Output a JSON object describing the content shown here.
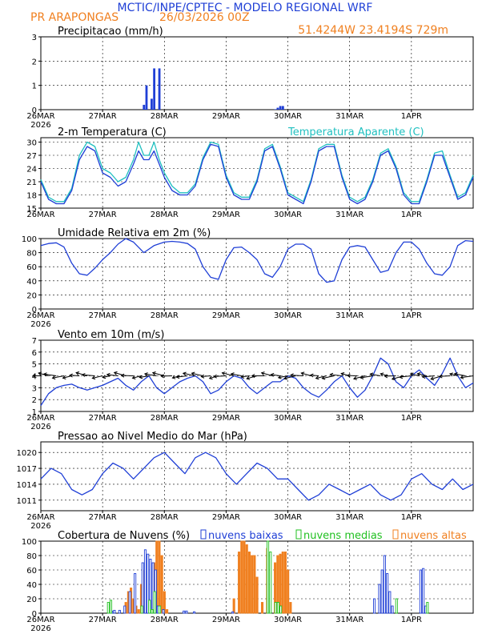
{
  "header": {
    "title": "MCTIC/INPE/CPTEC - MODELO REGIONAL WRF",
    "location": "PR ARAPONGAS",
    "run": "26/03/2026 00Z",
    "coords": "51.4244W 23.4194S 729m"
  },
  "colors": {
    "blue": "#1f3fd6",
    "cyan": "#20c0c0",
    "orange": "#f08020",
    "green": "#20c020"
  },
  "chart_data": [
    {
      "type": "bar",
      "title": "Precipitacao (mm/h)",
      "x_label_days": [
        "26MAR",
        "27MAR",
        "28MAR",
        "29MAR",
        "30MAR",
        "31MAR",
        "1APR"
      ],
      "year_label": "2026",
      "ylim": [
        0,
        3
      ],
      "yticks": [
        0,
        1,
        2,
        3
      ],
      "hours": [
        40,
        41,
        43,
        44,
        46,
        91,
        92,
        93,
        94
      ],
      "values": [
        0.2,
        1.0,
        0.45,
        1.7,
        1.7,
        0.02,
        0.08,
        0.15,
        0.15
      ]
    },
    {
      "type": "line",
      "title": "2-m Temperatura (C)",
      "legend_extra": "Temperatura Aparente (C)",
      "x_label_days": [
        "26MAR",
        "27MAR",
        "28MAR",
        "29MAR",
        "30MAR",
        "31MAR",
        "1APR"
      ],
      "year_label": "",
      "ylim": [
        15,
        31
      ],
      "yticks": [
        15,
        18,
        21,
        24,
        27,
        30
      ],
      "series": [
        {
          "name": "2-m Temperatura (C)",
          "hours": [
            0,
            3,
            6,
            9,
            12,
            15,
            18,
            21,
            24,
            27,
            30,
            33,
            36,
            38,
            40,
            42,
            44,
            46,
            48,
            51,
            54,
            57,
            60,
            63,
            66,
            69,
            72,
            75,
            78,
            81,
            84,
            87,
            90,
            93,
            96,
            99,
            102,
            105,
            108,
            111,
            114,
            117,
            120,
            123,
            126,
            129,
            132,
            135,
            138,
            141,
            144,
            147,
            150,
            153,
            156,
            159,
            162,
            165,
            168
          ],
          "values": [
            21,
            17,
            16,
            16,
            19,
            26,
            29,
            28,
            23,
            22,
            20,
            21,
            25,
            28,
            26,
            26,
            28,
            25,
            22,
            19,
            18,
            18,
            20,
            26,
            29.5,
            29,
            22,
            18,
            17,
            17,
            21,
            28,
            29,
            24,
            18,
            17,
            16,
            21,
            28,
            29,
            29,
            22,
            17,
            16,
            17,
            21,
            27,
            28,
            24,
            18,
            16,
            16,
            21,
            27,
            27,
            22,
            17,
            18,
            22
          ]
        },
        {
          "name": "Temperatura Aparente (C)",
          "hours": [
            0,
            3,
            6,
            9,
            12,
            15,
            18,
            21,
            24,
            27,
            30,
            33,
            36,
            38,
            40,
            42,
            44,
            46,
            48,
            51,
            54,
            57,
            60,
            63,
            66,
            69,
            72,
            75,
            78,
            81,
            84,
            87,
            90,
            93,
            96,
            99,
            102,
            105,
            108,
            111,
            114,
            117,
            120,
            123,
            126,
            129,
            132,
            135,
            138,
            141,
            144,
            147,
            150,
            153,
            156,
            159,
            162,
            165,
            168
          ],
          "values": [
            21.5,
            17.5,
            16.5,
            16.5,
            19.5,
            27,
            30,
            29,
            24,
            23,
            21,
            22,
            26,
            30,
            27,
            27,
            30,
            26,
            23,
            20,
            18.5,
            18.5,
            20.5,
            26.5,
            30,
            29.5,
            22.5,
            18.5,
            17.5,
            17.5,
            21.5,
            28.5,
            29.5,
            24.5,
            18.5,
            17.5,
            16.5,
            21.5,
            28.5,
            29.5,
            29.5,
            22.5,
            17.5,
            16.5,
            17.5,
            21.5,
            27.5,
            28.5,
            24.5,
            18.5,
            16.5,
            16.5,
            21.5,
            27.5,
            28,
            22.5,
            17.5,
            18.5,
            22.5
          ]
        }
      ]
    },
    {
      "type": "line",
      "title": "Umidade Relativa em 2m (%)",
      "x_label_days": [
        "26MAR",
        "27MAR",
        "28MAR",
        "29MAR",
        "30MAR",
        "31MAR",
        "1APR"
      ],
      "year_label": "2026",
      "ylim": [
        0,
        100
      ],
      "yticks": [
        0,
        20,
        40,
        60,
        80,
        100
      ],
      "series": [
        {
          "name": "Umidade Relativa (%)",
          "hours": [
            0,
            3,
            6,
            9,
            12,
            15,
            18,
            21,
            24,
            27,
            30,
            33,
            36,
            40,
            44,
            48,
            51,
            54,
            57,
            60,
            63,
            66,
            69,
            72,
            75,
            78,
            81,
            84,
            87,
            90,
            93,
            96,
            99,
            102,
            105,
            108,
            111,
            114,
            117,
            120,
            123,
            126,
            129,
            132,
            135,
            138,
            141,
            144,
            147,
            150,
            153,
            156,
            159,
            162,
            165,
            168
          ],
          "values": [
            90,
            93,
            94,
            88,
            65,
            50,
            48,
            58,
            70,
            80,
            92,
            100,
            95,
            80,
            90,
            95,
            96,
            95,
            93,
            85,
            60,
            45,
            42,
            70,
            87,
            88,
            80,
            70,
            50,
            45,
            60,
            85,
            92,
            92,
            85,
            50,
            38,
            40,
            70,
            88,
            90,
            88,
            70,
            52,
            55,
            80,
            95,
            95,
            85,
            65,
            50,
            48,
            60,
            90,
            97,
            96
          ]
        }
      ]
    },
    {
      "type": "line",
      "title": "Vento em 10m (m/s)",
      "x_label_days": [
        "26MAR",
        "27MAR",
        "28MAR",
        "29MAR",
        "30MAR",
        "31MAR",
        "1APR"
      ],
      "year_label": "2026",
      "ylim": [
        1,
        7
      ],
      "yticks": [
        1,
        2,
        3,
        4,
        5,
        6,
        7
      ],
      "arrow_count": 57,
      "series": [
        {
          "name": "Velocidade do Vento (m/s)",
          "hours": [
            0,
            3,
            6,
            9,
            12,
            15,
            18,
            21,
            24,
            27,
            30,
            33,
            36,
            39,
            42,
            45,
            48,
            51,
            54,
            57,
            60,
            63,
            66,
            69,
            72,
            75,
            78,
            81,
            84,
            87,
            90,
            93,
            96,
            99,
            102,
            105,
            108,
            111,
            114,
            117,
            120,
            123,
            126,
            129,
            132,
            135,
            138,
            141,
            144,
            147,
            150,
            153,
            156,
            159,
            162,
            165,
            168
          ],
          "values": [
            1.5,
            2.5,
            3.0,
            3.2,
            3.3,
            3.0,
            2.8,
            3.0,
            3.2,
            3.5,
            3.8,
            3.2,
            2.8,
            3.5,
            4.0,
            3.0,
            2.5,
            3.0,
            3.5,
            3.8,
            4.0,
            3.5,
            2.5,
            2.8,
            3.5,
            4.0,
            3.8,
            3.0,
            2.5,
            3.0,
            3.5,
            3.5,
            4.0,
            3.8,
            3.0,
            2.5,
            2.2,
            2.8,
            3.5,
            4.0,
            3.0,
            2.2,
            2.8,
            4.0,
            5.5,
            5.0,
            3.5,
            3.0,
            4.0,
            4.5,
            3.8,
            3.2,
            4.2,
            5.5,
            4.0,
            3.0,
            3.4
          ]
        }
      ]
    },
    {
      "type": "line",
      "title": "Pressao ao Nivel Medio do Mar (hPa)",
      "x_label_days": [
        "26MAR",
        "27MAR",
        "28MAR",
        "29MAR",
        "30MAR",
        "31MAR",
        "1APR"
      ],
      "year_label": "2026",
      "ylim": [
        1009,
        1022
      ],
      "yticks": [
        1011,
        1014,
        1017,
        1020
      ],
      "series": [
        {
          "name": "Pressao (hPa)",
          "hours": [
            0,
            4,
            8,
            12,
            16,
            20,
            24,
            28,
            32,
            36,
            40,
            44,
            48,
            52,
            56,
            60,
            64,
            68,
            72,
            76,
            80,
            84,
            88,
            92,
            96,
            100,
            104,
            108,
            112,
            116,
            120,
            124,
            128,
            132,
            136,
            140,
            144,
            148,
            152,
            156,
            160,
            164,
            168
          ],
          "values": [
            1015,
            1017,
            1016,
            1013,
            1012,
            1013,
            1016,
            1018,
            1017,
            1015,
            1017,
            1019,
            1020,
            1018,
            1016,
            1019,
            1020,
            1019,
            1016,
            1014,
            1016,
            1018,
            1017,
            1015,
            1015,
            1013,
            1011,
            1012,
            1014,
            1013,
            1012,
            1013,
            1014,
            1012,
            1011,
            1012,
            1015,
            1016,
            1014,
            1013,
            1015,
            1013,
            1014
          ]
        }
      ]
    },
    {
      "type": "bar",
      "title": "Cobertura de Nuvens (%)",
      "x_label_days": [
        "26MAR",
        "27MAR",
        "28MAR",
        "29MAR",
        "30MAR",
        "31MAR",
        "1APR"
      ],
      "year_label": "2026",
      "ylim": [
        0,
        100
      ],
      "yticks": [
        0,
        20,
        40,
        60,
        80,
        100
      ],
      "legend": [
        "nuvens baixas",
        "nuvens medias",
        "nuvens altas"
      ],
      "series": [
        {
          "name": "nuvens baixas",
          "hours": [
            27,
            28,
            29,
            31,
            33,
            35,
            37,
            40,
            41,
            42,
            43,
            44,
            45,
            46,
            48,
            56,
            57,
            60,
            75,
            89,
            130,
            132,
            133,
            134,
            135,
            136,
            137,
            148,
            149,
            150
          ],
          "values": [
            3,
            3,
            4,
            4,
            10,
            30,
            55,
            70,
            88,
            82,
            75,
            70,
            60,
            10,
            5,
            3,
            3,
            2,
            2,
            3,
            20,
            40,
            60,
            80,
            55,
            30,
            10,
            60,
            62,
            10
          ]
        },
        {
          "name": "nuvens medias",
          "hours": [
            26,
            27,
            39,
            42,
            43,
            44,
            46,
            88,
            89,
            91,
            92,
            93,
            138,
            150
          ],
          "values": [
            15,
            18,
            10,
            18,
            5,
            30,
            10,
            100,
            85,
            15,
            15,
            10,
            20,
            15
          ]
        },
        {
          "name": "nuvens altas",
          "hours": [
            33,
            34,
            35,
            36,
            37,
            38,
            39,
            40,
            44,
            45,
            46,
            47,
            48,
            49,
            75,
            77,
            78,
            79,
            80,
            81,
            82,
            83,
            84,
            86,
            88,
            91,
            92,
            93,
            94,
            95,
            96,
            97
          ],
          "values": [
            15,
            30,
            35,
            20,
            10,
            5,
            40,
            60,
            70,
            100,
            100,
            80,
            30,
            5,
            20,
            85,
            100,
            100,
            95,
            85,
            80,
            80,
            50,
            15,
            90,
            70,
            80,
            82,
            85,
            85,
            60,
            15
          ]
        }
      ]
    }
  ]
}
